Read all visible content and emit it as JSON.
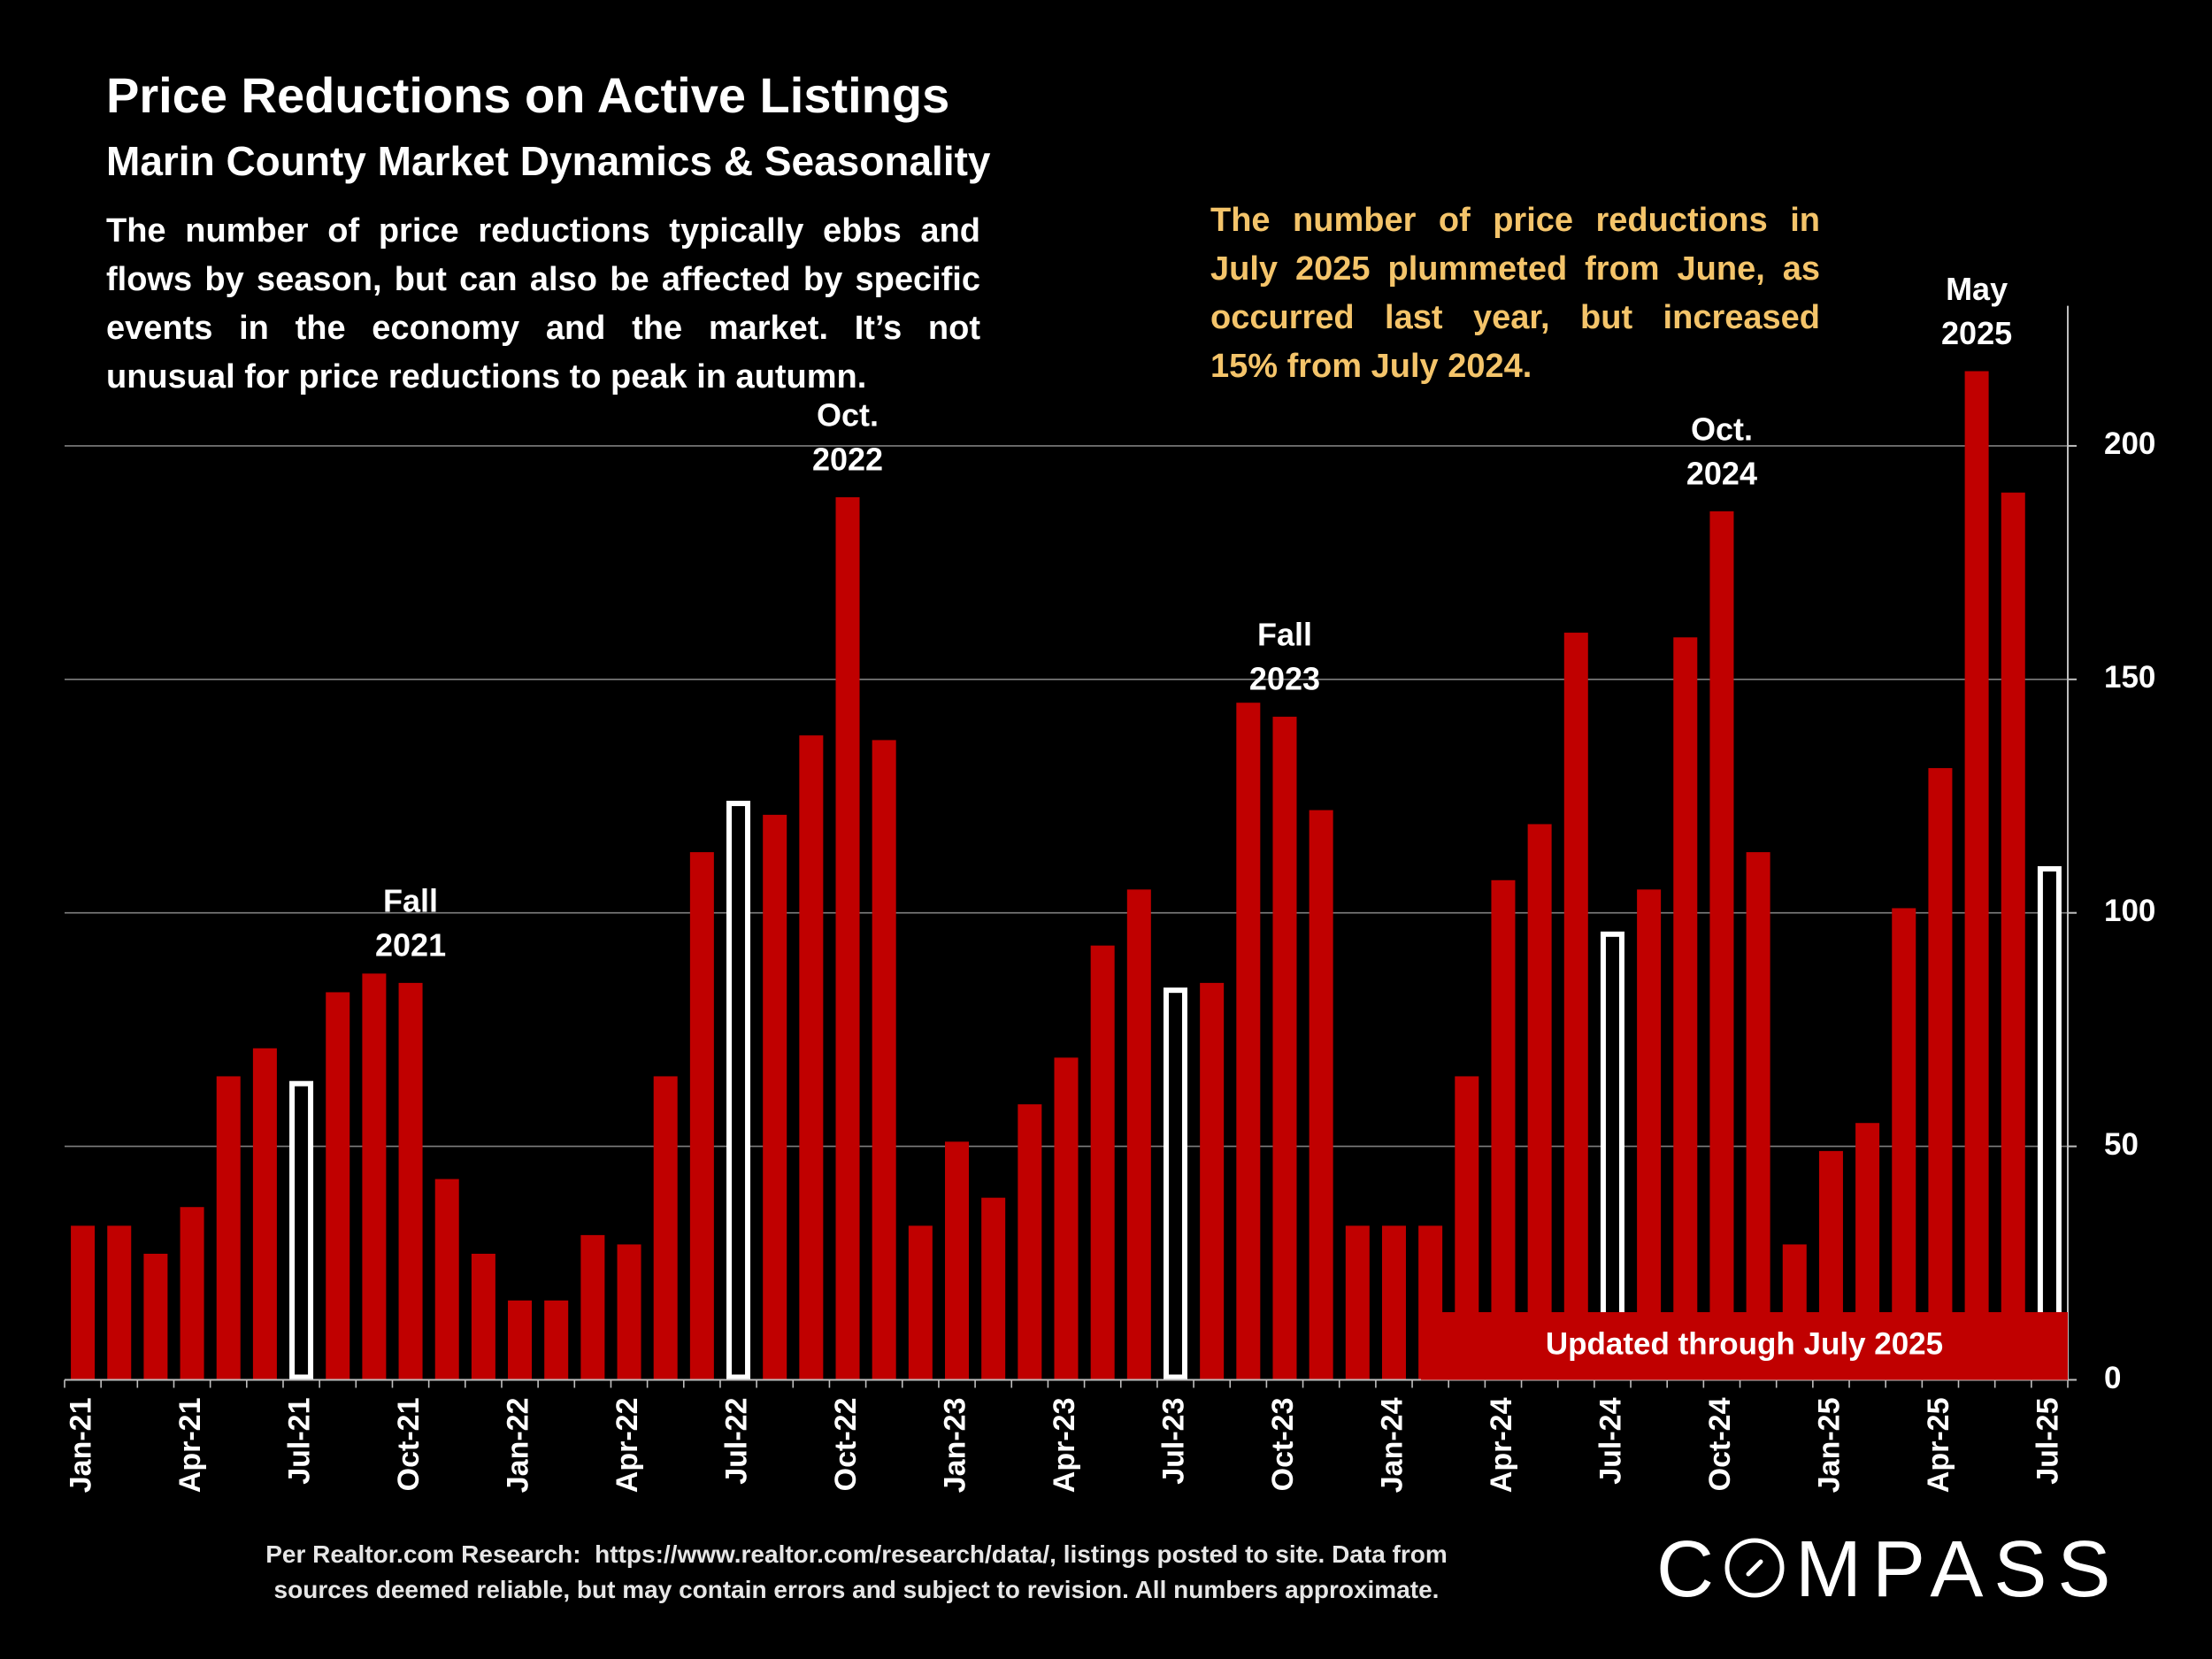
{
  "chart_data": {
    "type": "bar",
    "title": "Price Reductions on Active Listings",
    "subtitle": "Marin County Market Dynamics & Seasonality",
    "xlabel": "",
    "ylabel": "",
    "values": [
      33,
      33,
      27,
      37,
      65,
      71,
      64,
      83,
      87,
      85,
      43,
      27,
      17,
      17,
      31,
      29,
      65,
      113,
      124,
      121,
      138,
      189,
      137,
      33,
      51,
      39,
      59,
      69,
      93,
      105,
      84,
      85,
      145,
      142,
      122,
      33,
      33,
      33,
      65,
      107,
      119,
      160,
      96,
      105,
      159,
      186,
      113,
      29,
      49,
      55,
      101,
      131,
      216,
      190,
      110
    ],
    "highlight_indices": [
      6,
      18,
      30,
      42,
      54
    ],
    "tick_every": 3,
    "tick_labels": [
      "Jan-21",
      "Apr-21",
      "Jul-21",
      "Oct-21",
      "Jan-22",
      "Apr-22",
      "Jul-22",
      "Oct-22",
      "Jan-23",
      "Apr-23",
      "Jul-23",
      "Oct-23",
      "Jan-24",
      "Apr-24",
      "Jul-24",
      "Oct-24",
      "Jan-25",
      "Apr-25",
      "Jul-25"
    ],
    "ylim": [
      0,
      230
    ],
    "yticks": [
      0,
      50,
      100,
      150,
      200
    ],
    "grid": true,
    "legend": "none",
    "annotations": [
      {
        "index": 9,
        "lines": [
          "Fall",
          "2021"
        ]
      },
      {
        "index": 21,
        "lines": [
          "Oct.",
          "2022"
        ]
      },
      {
        "index": 33,
        "lines": [
          "Fall",
          "2023"
        ]
      },
      {
        "index": 45,
        "lines": [
          "Oct.",
          "2024"
        ]
      },
      {
        "index": 52,
        "lines": [
          "May",
          "2025"
        ]
      }
    ],
    "colors": {
      "bar": "#C00000",
      "highlight_outline": "#FFFFFF",
      "highlight_fill": "#000000",
      "grid": "#7F7F7F",
      "axis": "#BFBFBF",
      "text": "#FFFFFF"
    }
  },
  "intro": {
    "lines": [
      "The number of price reductions typically ebbs and",
      "flows by season, but can also be affected by specific",
      "events in the economy and the market. It’s not",
      "unusual for price reductions to peak in autumn."
    ]
  },
  "callout": {
    "color": "#F4C46A",
    "lines": [
      "The number of price reductions in",
      "July 2025 plummeted from June, as",
      "occurred last year, but increased",
      "15% from July 2024."
    ]
  },
  "banner": {
    "text": "Updated through July 2025",
    "color": "#C00000"
  },
  "footer": {
    "lines": [
      "Per Realtor.com Research:  https://www.realtor.com/research/data/, listings posted to site. Data from",
      "sources deemed reliable, but may contain errors and subject to revision. All numbers approximate."
    ]
  },
  "logo": {
    "text": "COMPASS"
  }
}
